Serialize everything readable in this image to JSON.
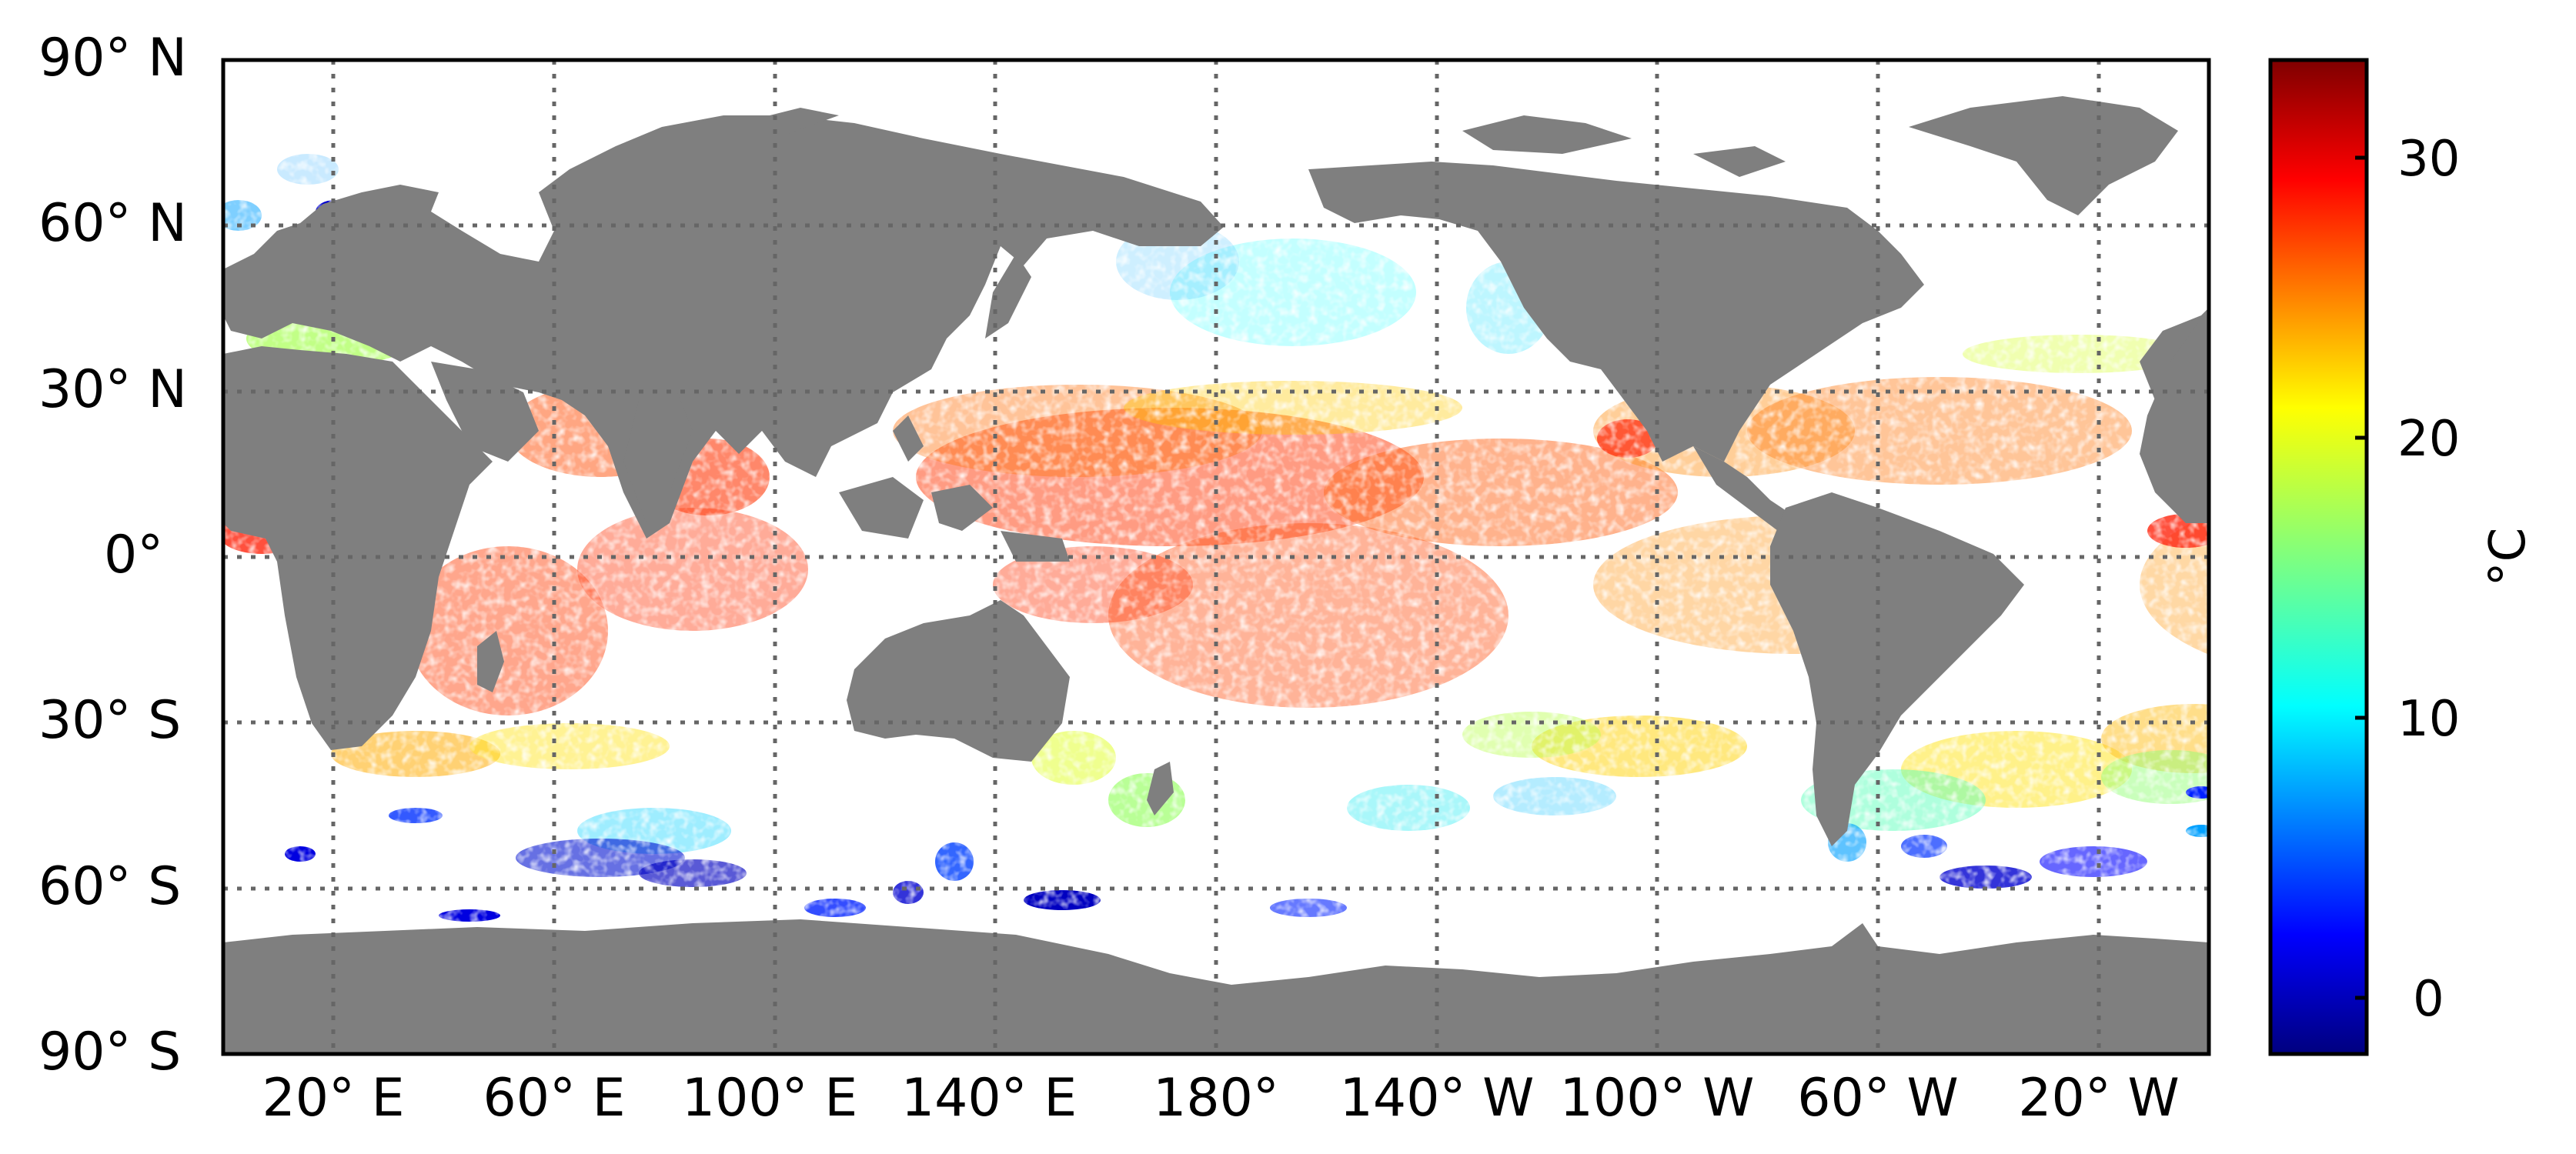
{
  "map": {
    "lat_labels": [
      "90° N",
      "60° N",
      "30° N",
      "0°",
      "30° S",
      "60° S",
      "90° S"
    ],
    "lon_labels": [
      "20° E",
      "60° E",
      "100° E",
      "140° E",
      "180°",
      "140° W",
      "100° W",
      "60° W",
      "20° W"
    ],
    "land_color": "#7f7f7f",
    "ocean_color": "#ffffff",
    "grid_style": "dotted"
  },
  "colorbar": {
    "ticks": [
      "0",
      "10",
      "20",
      "30"
    ],
    "unit_label": "°C",
    "min": -2,
    "max": 33.5,
    "colormap": "jet"
  }
}
